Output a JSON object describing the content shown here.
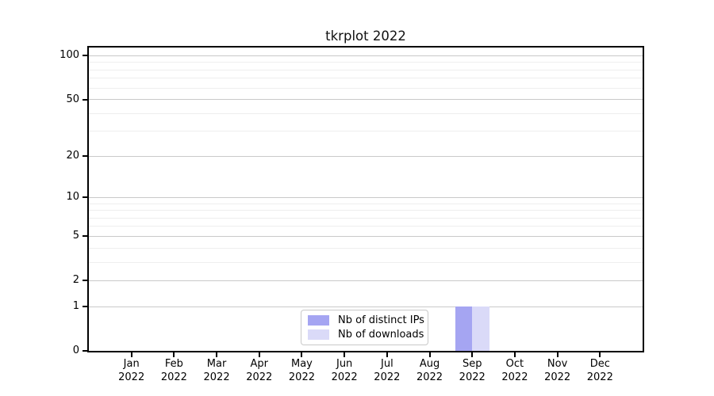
{
  "chart_data": {
    "type": "bar",
    "title": "tkrplot 2022",
    "categories": [
      {
        "month": "Jan",
        "year": "2022"
      },
      {
        "month": "Feb",
        "year": "2022"
      },
      {
        "month": "Mar",
        "year": "2022"
      },
      {
        "month": "Apr",
        "year": "2022"
      },
      {
        "month": "May",
        "year": "2022"
      },
      {
        "month": "Jun",
        "year": "2022"
      },
      {
        "month": "Jul",
        "year": "2022"
      },
      {
        "month": "Aug",
        "year": "2022"
      },
      {
        "month": "Sep",
        "year": "2022"
      },
      {
        "month": "Oct",
        "year": "2022"
      },
      {
        "month": "Nov",
        "year": "2022"
      },
      {
        "month": "Dec",
        "year": "2022"
      }
    ],
    "series": [
      {
        "name": "Nb of distinct IPs",
        "color": "#a5a5f2",
        "values": [
          0,
          0,
          0,
          0,
          0,
          0,
          0,
          0,
          1,
          0,
          0,
          0
        ]
      },
      {
        "name": "Nb of downloads",
        "color": "#dadaf8",
        "values": [
          0,
          0,
          0,
          0,
          0,
          0,
          0,
          0,
          1,
          0,
          0,
          0
        ]
      }
    ],
    "xlabel": "",
    "ylabel": "",
    "y_axis": {
      "scale": "log1p",
      "ticks": [
        0,
        1,
        2,
        5,
        10,
        20,
        50,
        100
      ],
      "minor_gridlines": [
        3,
        4,
        6,
        7,
        8,
        9,
        30,
        40,
        60,
        70,
        80,
        90
      ],
      "max": 114
    },
    "grid": {
      "horizontal_only": true,
      "major_color": "#c9c9c9",
      "minor_color": "#eeeeee"
    },
    "legend": {
      "position": "bottom-center-inside",
      "items": [
        "Nb of distinct IPs",
        "Nb of downloads"
      ]
    },
    "colors": {
      "spine": "#000000",
      "background": "#ffffff",
      "text": "#111111"
    }
  }
}
